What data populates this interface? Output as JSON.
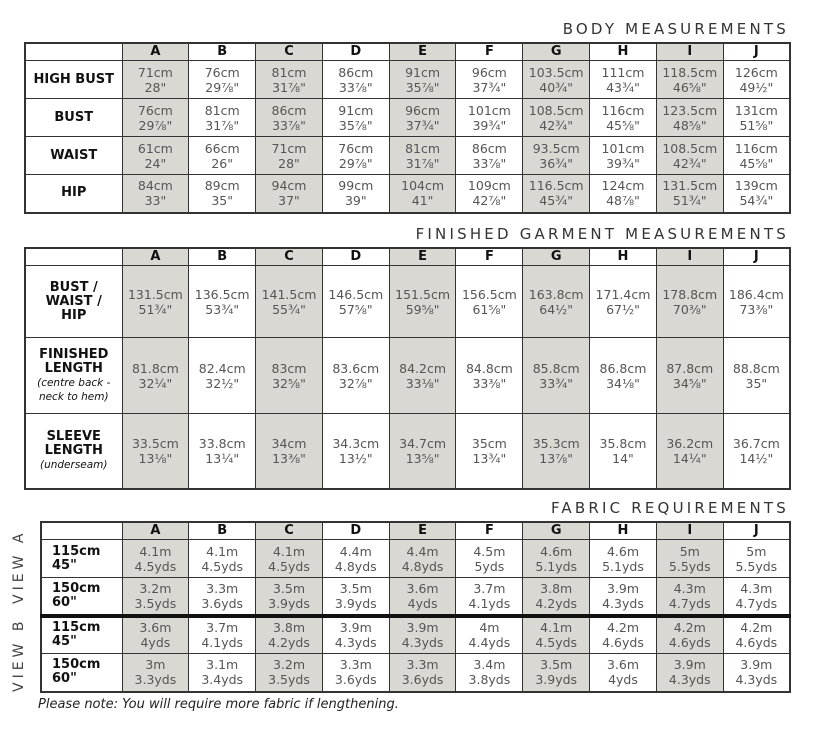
{
  "sizes": [
    "A",
    "B",
    "C",
    "D",
    "E",
    "F",
    "G",
    "H",
    "I",
    "J"
  ],
  "colors": {
    "shaded": "#d9d8d3",
    "border": "#333333"
  },
  "body": {
    "title": "BODY MEASUREMENTS",
    "rows": [
      {
        "label": "HIGH BUST",
        "values": [
          [
            "71cm",
            "28\""
          ],
          [
            "76cm",
            "29⅞\""
          ],
          [
            "81cm",
            "31⅞\""
          ],
          [
            "86cm",
            "33⅞\""
          ],
          [
            "91cm",
            "35⅞\""
          ],
          [
            "96cm",
            "37¾\""
          ],
          [
            "103.5cm",
            "40¾\""
          ],
          [
            "111cm",
            "43¾\""
          ],
          [
            "118.5cm",
            "46⅝\""
          ],
          [
            "126cm",
            "49½\""
          ]
        ]
      },
      {
        "label": "BUST",
        "values": [
          [
            "76cm",
            "29⅞\""
          ],
          [
            "81cm",
            "31⅞\""
          ],
          [
            "86cm",
            "33⅞\""
          ],
          [
            "91cm",
            "35⅞\""
          ],
          [
            "96cm",
            "37¾\""
          ],
          [
            "101cm",
            "39¾\""
          ],
          [
            "108.5cm",
            "42¾\""
          ],
          [
            "116cm",
            "45⅝\""
          ],
          [
            "123.5cm",
            "48⅝\""
          ],
          [
            "131cm",
            "51⅝\""
          ]
        ]
      },
      {
        "label": "WAIST",
        "values": [
          [
            "61cm",
            "24\""
          ],
          [
            "66cm",
            "26\""
          ],
          [
            "71cm",
            "28\""
          ],
          [
            "76cm",
            "29⅞\""
          ],
          [
            "81cm",
            "31⅞\""
          ],
          [
            "86cm",
            "33⅞\""
          ],
          [
            "93.5cm",
            "36¾\""
          ],
          [
            "101cm",
            "39¾\""
          ],
          [
            "108.5cm",
            "42¾\""
          ],
          [
            "116cm",
            "45⅝\""
          ]
        ]
      },
      {
        "label": "HIP",
        "values": [
          [
            "84cm",
            "33\""
          ],
          [
            "89cm",
            "35\""
          ],
          [
            "94cm",
            "37\""
          ],
          [
            "99cm",
            "39\""
          ],
          [
            "104cm",
            "41\""
          ],
          [
            "109cm",
            "42⅞\""
          ],
          [
            "116.5cm",
            "45¾\""
          ],
          [
            "124cm",
            "48⅞\""
          ],
          [
            "131.5cm",
            "51¾\""
          ],
          [
            "139cm",
            "54¾\""
          ]
        ]
      }
    ]
  },
  "finished": {
    "title": "FINISHED GARMENT MEASUREMENTS",
    "rows": [
      {
        "label": "BUST / WAIST / HIP",
        "sub": "",
        "values": [
          [
            "131.5cm",
            "51¾\""
          ],
          [
            "136.5cm",
            "53¾\""
          ],
          [
            "141.5cm",
            "55¾\""
          ],
          [
            "146.5cm",
            "57⅝\""
          ],
          [
            "151.5cm",
            "59⅝\""
          ],
          [
            "156.5cm",
            "61⅝\""
          ],
          [
            "163.8cm",
            "64½\""
          ],
          [
            "171.4cm",
            "67½\""
          ],
          [
            "178.8cm",
            "70⅜\""
          ],
          [
            "186.4cm",
            "73⅜\""
          ]
        ]
      },
      {
        "label": "FINISHED LENGTH",
        "sub": "(centre back - neck to hem)",
        "values": [
          [
            "81.8cm",
            "32¼\""
          ],
          [
            "82.4cm",
            "32½\""
          ],
          [
            "83cm",
            "32⅝\""
          ],
          [
            "83.6cm",
            "32⅞\""
          ],
          [
            "84.2cm",
            "33⅛\""
          ],
          [
            "84.8cm",
            "33⅜\""
          ],
          [
            "85.8cm",
            "33¾\""
          ],
          [
            "86.8cm",
            "34⅛\""
          ],
          [
            "87.8cm",
            "34⅝\""
          ],
          [
            "88.8cm",
            "35\""
          ]
        ]
      },
      {
        "label": "SLEEVE LENGTH",
        "sub": "(underseam)",
        "values": [
          [
            "33.5cm",
            "13⅛\""
          ],
          [
            "33.8cm",
            "13¼\""
          ],
          [
            "34cm",
            "13⅜\""
          ],
          [
            "34.3cm",
            "13½\""
          ],
          [
            "34.7cm",
            "13⅝\""
          ],
          [
            "35cm",
            "13¾\""
          ],
          [
            "35.3cm",
            "13⅞\""
          ],
          [
            "35.8cm",
            "14\""
          ],
          [
            "36.2cm",
            "14¼\""
          ],
          [
            "36.7cm",
            "14½\""
          ]
        ]
      }
    ]
  },
  "fabric": {
    "title": "FABRIC REQUIREMENTS",
    "view_a": "VIEW A",
    "view_b": "VIEW B",
    "rows": [
      {
        "view": "A",
        "width_cm": "115cm",
        "width_in": "45\"",
        "values": [
          [
            "4.1m",
            "4.5yds"
          ],
          [
            "4.1m",
            "4.5yds"
          ],
          [
            "4.1m",
            "4.5yds"
          ],
          [
            "4.4m",
            "4.8yds"
          ],
          [
            "4.4m",
            "4.8yds"
          ],
          [
            "4.5m",
            "5yds"
          ],
          [
            "4.6m",
            "5.1yds"
          ],
          [
            "4.6m",
            "5.1yds"
          ],
          [
            "5m",
            "5.5yds"
          ],
          [
            "5m",
            "5.5yds"
          ]
        ]
      },
      {
        "view": "A",
        "width_cm": "150cm",
        "width_in": "60\"",
        "values": [
          [
            "3.2m",
            "3.5yds"
          ],
          [
            "3.3m",
            "3.6yds"
          ],
          [
            "3.5m",
            "3.9yds"
          ],
          [
            "3.5m",
            "3.9yds"
          ],
          [
            "3.6m",
            "4yds"
          ],
          [
            "3.7m",
            "4.1yds"
          ],
          [
            "3.8m",
            "4.2yds"
          ],
          [
            "3.9m",
            "4.3yds"
          ],
          [
            "4.3m",
            "4.7yds"
          ],
          [
            "4.3m",
            "4.7yds"
          ]
        ]
      },
      {
        "view": "B",
        "width_cm": "115cm",
        "width_in": "45\"",
        "values": [
          [
            "3.6m",
            "4yds"
          ],
          [
            "3.7m",
            "4.1yds"
          ],
          [
            "3.8m",
            "4.2yds"
          ],
          [
            "3.9m",
            "4.3yds"
          ],
          [
            "3.9m",
            "4.3yds"
          ],
          [
            "4m",
            "4.4yds"
          ],
          [
            "4.1m",
            "4.5yds"
          ],
          [
            "4.2m",
            "4.6yds"
          ],
          [
            "4.2m",
            "4.6yds"
          ],
          [
            "4.2m",
            "4.6yds"
          ]
        ]
      },
      {
        "view": "B",
        "width_cm": "150cm",
        "width_in": "60\"",
        "values": [
          [
            "3m",
            "3.3yds"
          ],
          [
            "3.1m",
            "3.4yds"
          ],
          [
            "3.2m",
            "3.5yds"
          ],
          [
            "3.3m",
            "3.6yds"
          ],
          [
            "3.3m",
            "3.6yds"
          ],
          [
            "3.4m",
            "3.8yds"
          ],
          [
            "3.5m",
            "3.9yds"
          ],
          [
            "3.6m",
            "4yds"
          ],
          [
            "3.9m",
            "4.3yds"
          ],
          [
            "3.9m",
            "4.3yds"
          ]
        ]
      }
    ],
    "note": "Please note: You will require more fabric if lengthening."
  }
}
